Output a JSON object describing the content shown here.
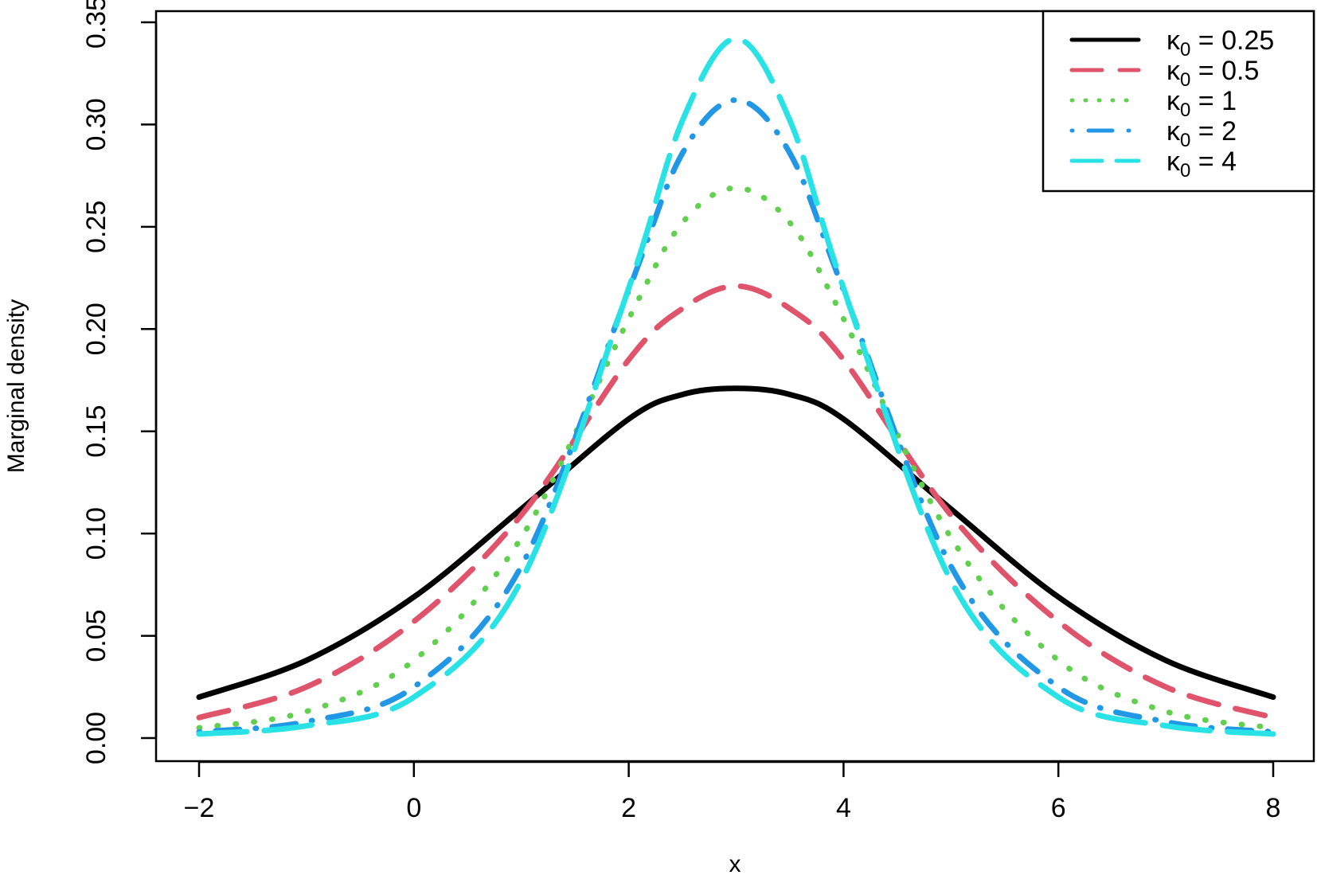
{
  "chart_data": {
    "type": "line",
    "title": "",
    "xlabel": "x",
    "ylabel": "Marginal density",
    "xlim": [
      -2,
      8
    ],
    "ylim": [
      0,
      0.35
    ],
    "x_ticks": [
      -2,
      0,
      2,
      4,
      6,
      8
    ],
    "x_tick_labels": [
      "−2",
      "0",
      "2",
      "4",
      "6",
      "8"
    ],
    "y_ticks": [
      0,
      0.05,
      0.1,
      0.15,
      0.2,
      0.25,
      0.3,
      0.35
    ],
    "y_tick_labels": [
      "0.00",
      "0.05",
      "0.10",
      "0.15",
      "0.20",
      "0.25",
      "0.30",
      "0.35"
    ],
    "grid": false,
    "legend_position": "top-right",
    "x": [
      -2,
      -1,
      0,
      1,
      2,
      2.5,
      3,
      3.5,
      4,
      5,
      6,
      7,
      8
    ],
    "series": [
      {
        "name": "κ0 = 0.25",
        "legend": {
          "symbol": "κ",
          "sub": "0",
          "rest": " = 0.25"
        },
        "color": "#000000",
        "dash": "solid",
        "values": [
          0.02,
          0.038,
          0.069,
          0.112,
          0.156,
          0.168,
          0.171,
          0.168,
          0.156,
          0.112,
          0.069,
          0.038,
          0.02
        ]
      },
      {
        "name": "κ0 = 0.5",
        "legend": {
          "symbol": "κ",
          "sub": "0",
          "rest": " = 0.5"
        },
        "color": "#DF536B",
        "dash": "dashed",
        "values": [
          0.01,
          0.025,
          0.057,
          0.109,
          0.185,
          0.21,
          0.221,
          0.21,
          0.185,
          0.109,
          0.057,
          0.025,
          0.01
        ]
      },
      {
        "name": "κ0 = 1",
        "legend": {
          "symbol": "κ",
          "sub": "0",
          "rest": " = 1"
        },
        "color": "#61D04F",
        "dash": "dotted",
        "values": [
          0.005,
          0.013,
          0.038,
          0.098,
          0.205,
          0.252,
          0.269,
          0.252,
          0.205,
          0.098,
          0.038,
          0.013,
          0.005
        ]
      },
      {
        "name": "κ0 = 2",
        "legend": {
          "symbol": "κ",
          "sub": "0",
          "rest": " = 2"
        },
        "color": "#2297E6",
        "dash": "dotdash",
        "values": [
          0.003,
          0.008,
          0.025,
          0.084,
          0.219,
          0.286,
          0.312,
          0.286,
          0.219,
          0.084,
          0.025,
          0.008,
          0.003
        ]
      },
      {
        "name": "κ0 = 4",
        "legend": {
          "symbol": "κ",
          "sub": "0",
          "rest": " = 4"
        },
        "color": "#28E2E5",
        "dash": "longdash",
        "values": [
          0.002,
          0.006,
          0.02,
          0.077,
          0.22,
          0.302,
          0.342,
          0.302,
          0.22,
          0.077,
          0.02,
          0.006,
          0.002
        ]
      }
    ]
  }
}
